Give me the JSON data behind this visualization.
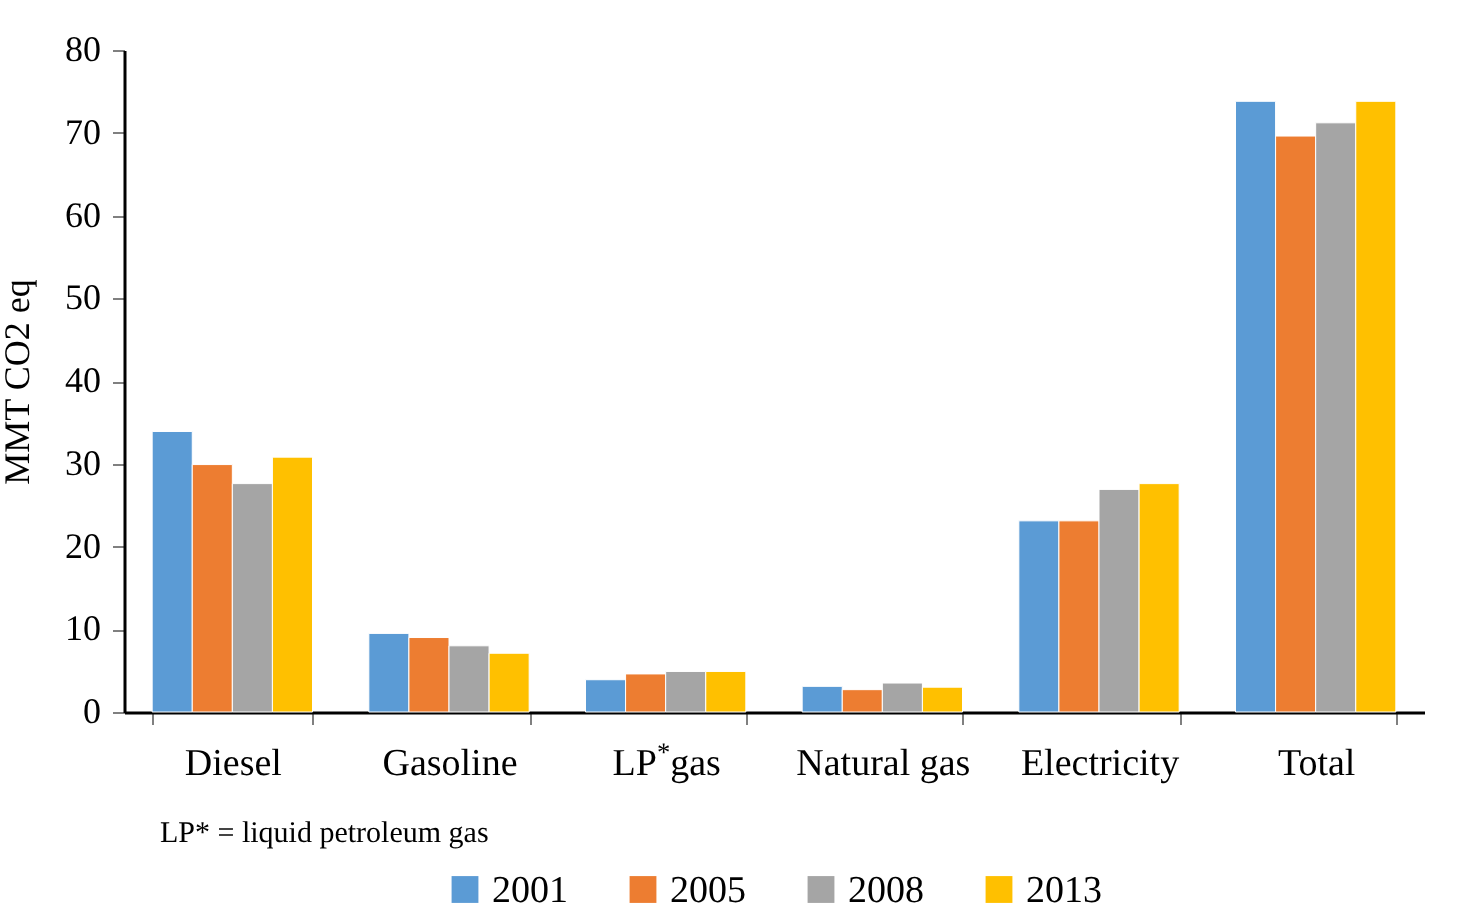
{
  "chart_data": {
    "type": "bar",
    "ylabel": "MMT CO2 eq",
    "categories": [
      "Diesel",
      "Gasoline",
      "LP$^{*}$gas",
      "Natural gas",
      "Electricity",
      "Total"
    ],
    "series": [
      {
        "name": "2001",
        "color": "#5b9bd5",
        "values": [
          33.9,
          9.5,
          3.9,
          3.1,
          23.1,
          73.8
        ]
      },
      {
        "name": "2005",
        "color": "#ed7d31",
        "values": [
          29.9,
          9.0,
          4.6,
          2.7,
          23.1,
          69.6
        ]
      },
      {
        "name": "2008",
        "color": "#a5a5a5",
        "values": [
          27.6,
          8.0,
          4.9,
          3.5,
          26.9,
          71.2
        ]
      },
      {
        "name": "2013",
        "color": "#ffc000",
        "values": [
          30.8,
          7.1,
          4.9,
          3.0,
          27.6,
          73.8
        ]
      }
    ],
    "ylim": [
      0,
      80
    ],
    "yticks": [
      0,
      10,
      20,
      30,
      40,
      50,
      60,
      70,
      80
    ],
    "grid": false,
    "legend": "bottom",
    "annotations": [
      "LP* = liquid petroleum gas"
    ]
  }
}
